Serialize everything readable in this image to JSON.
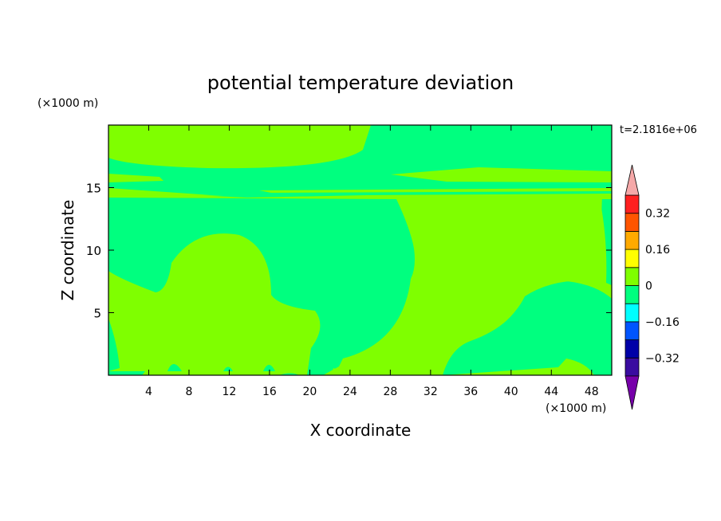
{
  "chart_data": {
    "type": "heatmap",
    "title": "potential temperature deviation",
    "xlabel": "X coordinate",
    "ylabel": "Z coordinate",
    "x_unit": "(×1000 m)",
    "y_unit": "(×1000 m)",
    "time_label": "t=2.1816e+06",
    "xlim": [
      0,
      50
    ],
    "ylim": [
      0,
      20
    ],
    "x_ticks": [
      4,
      8,
      12,
      16,
      20,
      24,
      28,
      32,
      36,
      40,
      44,
      48
    ],
    "y_ticks": [
      5,
      10,
      15
    ],
    "field_colors": {
      "zero_to_pos": "#7fff00",
      "neg_to_zero": "#00ff7f"
    },
    "colorbar": {
      "labels": [
        {
          "text": "0.32",
          "value": 0.32
        },
        {
          "text": "0.16",
          "value": 0.16
        },
        {
          "text": "0",
          "value": 0
        },
        {
          "text": "−0.16",
          "value": -0.16
        },
        {
          "text": "−0.32",
          "value": -0.32
        }
      ],
      "levels": [
        -0.4,
        -0.32,
        -0.24,
        -0.16,
        -0.08,
        0,
        0.08,
        0.16,
        0.24,
        0.32,
        0.4
      ],
      "colors": [
        "#3a0ca0",
        "#0000a8",
        "#0055ff",
        "#00ffff",
        "#00ff7f",
        "#7fff00",
        "#ffff00",
        "#ffaa00",
        "#ff5500",
        "#ff2020"
      ],
      "low_extend_color": "#7700aa",
      "high_extend_color": "#f5a8a8"
    }
  }
}
